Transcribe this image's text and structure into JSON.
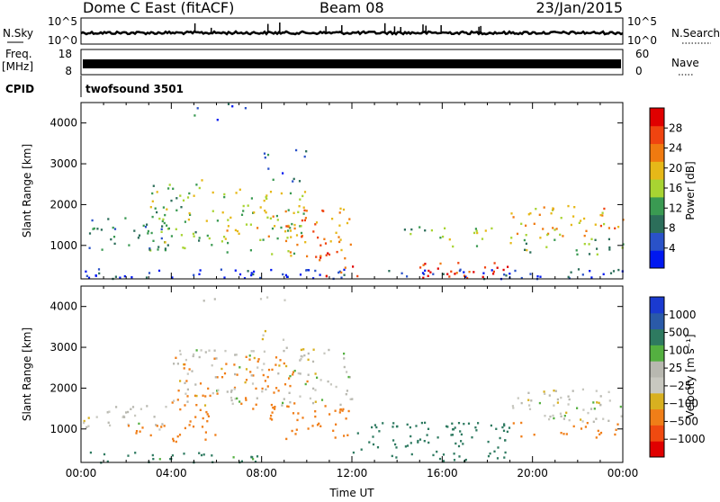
{
  "header": {
    "station": "Dome C East (fitACF)",
    "beam": "Beam 08",
    "date": "23/Jan/2015"
  },
  "status_panels": {
    "nsky_label": "N.Sky",
    "nsky_ticks": [
      "10^5",
      "10^0"
    ],
    "nsearch_label": "N.Search",
    "freq_label_1": "Freq.",
    "freq_label_2": "[MHz]",
    "freq_ticks": [
      "18",
      "8"
    ],
    "nave_label": "Nave",
    "nave_ticks": [
      "60",
      "0"
    ],
    "cpid_label": "CPID",
    "cpid_value": "twofsound 3501"
  },
  "colors": {
    "power_scale": [
      "#0018f0",
      "#2a52c8",
      "#2c6e5a",
      "#3a9a52",
      "#a8d432",
      "#e6b818",
      "#f07a10",
      "#f04410",
      "#e00000"
    ],
    "velocity_scale": [
      "#1a3ad0",
      "#2a5aa8",
      "#2e7a60",
      "#54b040",
      "#b8b8b0",
      "#c8c8c0",
      "#d8b020",
      "#f07e18",
      "#f04a10",
      "#e00000"
    ]
  },
  "chart_data": [
    {
      "type": "heatmap",
      "panel": "power",
      "ylabel": "Slant Range [km]",
      "ylim": [
        180,
        4500
      ],
      "yticks": [
        1000,
        2000,
        3000,
        4000
      ],
      "xlim": [
        0,
        24
      ],
      "colorbar_label": "Power [dB]",
      "colorbar_ticks": [
        "28",
        "24",
        "20",
        "16",
        "12",
        "8",
        "4"
      ],
      "colorbar_range": [
        0,
        30
      ],
      "features": [
        {
          "t0": 0,
          "t1": 24,
          "r0": 200,
          "r1": 450,
          "value": 4,
          "density": 0.55
        },
        {
          "t0": 0,
          "t1": 4,
          "r0": 900,
          "r1": 1700,
          "value": 8,
          "density": 0.45
        },
        {
          "t0": 3,
          "t1": 6,
          "r0": 900,
          "r1": 2700,
          "value": 14,
          "density": 0.4
        },
        {
          "t0": 6,
          "t1": 10,
          "r0": 800,
          "r1": 2400,
          "value": 16,
          "density": 0.45
        },
        {
          "t0": 9,
          "t1": 12,
          "r0": 700,
          "r1": 2000,
          "value": 22,
          "density": 0.45
        },
        {
          "t0": 10.5,
          "t1": 12.3,
          "r0": 250,
          "r1": 900,
          "value": 25,
          "density": 0.35
        },
        {
          "t0": 14.5,
          "t1": 19,
          "r0": 220,
          "r1": 600,
          "value": 27,
          "density": 0.6
        },
        {
          "t0": 14,
          "t1": 19,
          "r0": 1000,
          "r1": 1500,
          "value": 14,
          "density": 0.3
        },
        {
          "t0": 19,
          "t1": 24,
          "r0": 1200,
          "r1": 2000,
          "value": 19,
          "density": 0.45
        },
        {
          "t0": 19,
          "t1": 24,
          "r0": 800,
          "r1": 1200,
          "value": 12,
          "density": 0.4
        },
        {
          "t0": 8,
          "t1": 10,
          "r0": 2500,
          "r1": 3400,
          "value": 8,
          "density": 0.25
        },
        {
          "t0": 4.5,
          "t1": 9,
          "r0": 4100,
          "r1": 4500,
          "value": 6,
          "density": 0.12
        }
      ]
    },
    {
      "type": "heatmap",
      "panel": "velocity",
      "ylabel": "Slant Range [km]",
      "ylim": [
        180,
        4500
      ],
      "yticks": [
        1000,
        2000,
        3000,
        4000
      ],
      "xlim": [
        0,
        24
      ],
      "xticks": [
        "00:00",
        "04:00",
        "08:00",
        "12:00",
        "16:00",
        "20:00",
        "00:00"
      ],
      "xlabel": "Time UT",
      "colorbar_label": "Velocity [m s⁻¹]",
      "colorbar_ticks": [
        "1000",
        "500",
        "100",
        "25",
        "−25",
        "−100",
        "−500",
        "−1000"
      ],
      "features": [
        {
          "t0": 0,
          "t1": 8,
          "r0": 200,
          "r1": 450,
          "value": 150,
          "density": 0.55
        },
        {
          "t0": 0,
          "t1": 4,
          "r0": 1000,
          "r1": 1600,
          "value": 0,
          "density": 0.45
        },
        {
          "t0": 2,
          "t1": 6,
          "r0": 700,
          "r1": 1500,
          "value": -300,
          "density": 0.35
        },
        {
          "t0": 4,
          "t1": 10,
          "r0": 1500,
          "r1": 2800,
          "value": -150,
          "density": 0.35
        },
        {
          "t0": 4,
          "t1": 12,
          "r0": 1600,
          "r1": 3000,
          "value": 0,
          "density": 0.35
        },
        {
          "t0": 8,
          "t1": 12,
          "r0": 700,
          "r1": 1600,
          "value": -200,
          "density": 0.4
        },
        {
          "t0": 12,
          "t1": 19,
          "r0": 220,
          "r1": 1200,
          "value": 200,
          "density": 0.5
        },
        {
          "t0": 19,
          "t1": 24,
          "r0": 1200,
          "r1": 2000,
          "value": 0,
          "density": 0.55
        },
        {
          "t0": 19,
          "t1": 24,
          "r0": 800,
          "r1": 1200,
          "value": -200,
          "density": 0.35
        },
        {
          "t0": 8,
          "t1": 10,
          "r0": 2700,
          "r1": 3500,
          "value": 0,
          "density": 0.25
        },
        {
          "t0": 5,
          "t1": 9,
          "r0": 4100,
          "r1": 4500,
          "value": 0,
          "density": 0.12
        }
      ]
    }
  ]
}
